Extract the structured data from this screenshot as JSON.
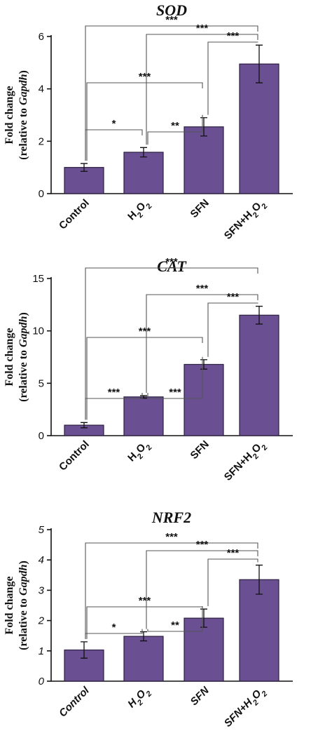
{
  "chart_data": [
    {
      "type": "bar",
      "title": "SOD",
      "ylabel": {
        "line1": "Fold change",
        "line2_prefix": "(relative to ",
        "line2_italic": "Gapdh",
        "line2_suffix": ")"
      },
      "categories": [
        "Control",
        "H2O2",
        "SFN",
        "SFN+H2O2"
      ],
      "values": [
        1.0,
        1.58,
        2.55,
        4.95
      ],
      "errors": [
        0.15,
        0.18,
        0.35,
        0.72
      ],
      "ylim": [
        0,
        6
      ],
      "yticks": [
        0,
        2,
        4,
        6
      ],
      "italic_ticks": false,
      "comparisons": [
        {
          "from": 0,
          "to": 1,
          "label": "*"
        },
        {
          "from": 0,
          "to": 2,
          "label": "***"
        },
        {
          "from": 1,
          "to": 2,
          "label": "**"
        },
        {
          "from": 0,
          "to": 3,
          "label": "***"
        },
        {
          "from": 1,
          "to": 3,
          "label": "***"
        },
        {
          "from": 2,
          "to": 3,
          "label": "***"
        }
      ]
    },
    {
      "type": "bar",
      "title": "CAT",
      "ylabel": {
        "line1": "Fold change",
        "line2_prefix": "(relative to ",
        "line2_italic": "Gapdh",
        "line2_suffix": ")"
      },
      "categories": [
        "Control",
        "H2O2",
        "SFN",
        "SFN+H2O2"
      ],
      "values": [
        1.0,
        3.7,
        6.8,
        11.5
      ],
      "errors": [
        0.25,
        0.12,
        0.45,
        0.85
      ],
      "ylim": [
        0,
        15
      ],
      "yticks": [
        0,
        5,
        10,
        15
      ],
      "italic_ticks": false,
      "comparisons": [
        {
          "from": 0,
          "to": 1,
          "label": "***"
        },
        {
          "from": 0,
          "to": 2,
          "label": "***"
        },
        {
          "from": 1,
          "to": 2,
          "label": "***"
        },
        {
          "from": 0,
          "to": 3,
          "label": "***"
        },
        {
          "from": 1,
          "to": 3,
          "label": "***"
        },
        {
          "from": 2,
          "to": 3,
          "label": "***"
        }
      ]
    },
    {
      "type": "bar",
      "title": "NRF2",
      "ylabel": {
        "line1": "Fold change",
        "line2_prefix": "(relative to ",
        "line2_italic": "Gapdh",
        "line2_suffix": ")"
      },
      "categories": [
        "Control",
        "H2O2",
        "SFN",
        "SFN+H2O2"
      ],
      "values": [
        1.03,
        1.48,
        2.08,
        3.35
      ],
      "errors": [
        0.27,
        0.15,
        0.3,
        0.48
      ],
      "ylim": [
        0,
        5
      ],
      "yticks": [
        0,
        1,
        2,
        3,
        4,
        5
      ],
      "italic_ticks": true,
      "comparisons": [
        {
          "from": 0,
          "to": 1,
          "label": "*"
        },
        {
          "from": 0,
          "to": 2,
          "label": "***"
        },
        {
          "from": 1,
          "to": 2,
          "label": "**"
        },
        {
          "from": 0,
          "to": 3,
          "label": "***"
        },
        {
          "from": 1,
          "to": 3,
          "label": "***"
        },
        {
          "from": 2,
          "to": 3,
          "label": "***"
        }
      ]
    }
  ]
}
